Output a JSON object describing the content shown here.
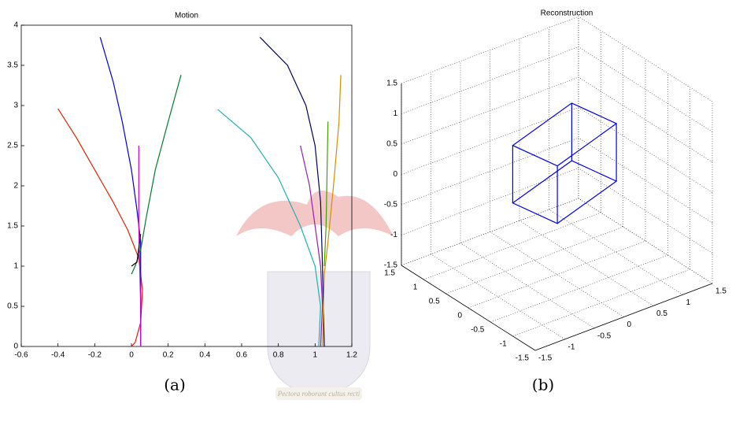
{
  "chart_data": [
    {
      "type": "line",
      "title": "Motion",
      "caption": "(a)",
      "xlim": [
        -0.6,
        1.2
      ],
      "xticks": [
        -0.6,
        -0.4,
        -0.2,
        0,
        0.2,
        0.4,
        0.6,
        0.8,
        1,
        1.2
      ],
      "ylim": [
        0,
        4
      ],
      "yticks": [
        0,
        0.5,
        1,
        1.5,
        2,
        2.5,
        3,
        3.5,
        4
      ],
      "series": [
        {
          "color": "#e02000",
          "x": [
            -0.4,
            -0.3,
            -0.2,
            -0.1,
            -0.02,
            0.04,
            0.06,
            0.05,
            0.02,
            0
          ],
          "values": [
            2.96,
            2.6,
            2.2,
            1.8,
            1.45,
            1.1,
            0.7,
            0.3,
            0.05,
            0
          ]
        },
        {
          "color": "#0000cc",
          "x": [
            -0.17,
            -0.1,
            -0.05,
            0,
            0.03,
            0.05,
            0.05,
            0.05
          ],
          "values": [
            3.85,
            3.3,
            2.8,
            2.2,
            1.7,
            1.3,
            1.0,
            0
          ]
        },
        {
          "color": "#007a30",
          "x": [
            0.27,
            0.2,
            0.13,
            0.08,
            0.05,
            0.02,
            0.0
          ],
          "values": [
            3.38,
            2.8,
            2.2,
            1.6,
            1.2,
            1.0,
            0.9
          ]
        },
        {
          "color": "#cc00cc",
          "x": [
            0.04,
            0.04,
            0.05,
            0.05
          ],
          "values": [
            2.5,
            1.5,
            0.5,
            0
          ]
        },
        {
          "color": "#000000",
          "x": [
            0.0,
            0.03,
            0.05
          ],
          "values": [
            1.0,
            1.05,
            1.4
          ]
        },
        {
          "color": "#000060",
          "x": [
            0.7,
            0.85,
            0.95,
            1.0,
            1.03,
            1.04,
            1.05
          ],
          "values": [
            3.85,
            3.5,
            3.0,
            2.5,
            1.8,
            1.0,
            0
          ]
        },
        {
          "color": "#20b0b0",
          "x": [
            0.47,
            0.65,
            0.8,
            0.92,
            1.0,
            1.03,
            1.02
          ],
          "values": [
            2.95,
            2.6,
            2.1,
            1.5,
            1.0,
            0.5,
            0
          ]
        },
        {
          "color": "#9020b0",
          "x": [
            0.92,
            0.97,
            1.0,
            1.03,
            1.04,
            1.03
          ],
          "values": [
            2.5,
            2.0,
            1.5,
            1.0,
            0.5,
            0
          ]
        },
        {
          "color": "#d09000",
          "x": [
            1.14,
            1.13,
            1.1,
            1.07,
            1.05,
            1.04
          ],
          "values": [
            3.38,
            2.8,
            2.0,
            1.3,
            0.9,
            0
          ]
        },
        {
          "color": "#40a000",
          "x": [
            1.07,
            1.06,
            1.05
          ],
          "values": [
            2.8,
            1.5,
            1.0
          ]
        }
      ]
    },
    {
      "type": "line3d",
      "title": "Reconstruction",
      "caption": "(b)",
      "grid": true,
      "xlim": [
        -1.5,
        1.5
      ],
      "xticks": [
        -1.5,
        -1,
        -0.5,
        0,
        0.5,
        1,
        1.5
      ],
      "ylim": [
        -1.5,
        1.5
      ],
      "yticks": [
        -1.5,
        -1,
        -0.5,
        0,
        0.5,
        1,
        1.5
      ],
      "zlim": [
        -1.5,
        1.5
      ],
      "zticks": [
        -1.5,
        -1,
        -0.5,
        0,
        0.5,
        1,
        1.5
      ],
      "series": [
        {
          "color": "#0000ee",
          "x": [
            -0.37,
            0.63,
            0.63,
            -0.37,
            -0.37,
            -0.37,
            0.63,
            0.63,
            -0.37,
            -0.37,
            null,
            0.63,
            0.63,
            null,
            0.63,
            0.63,
            null,
            -0.37,
            -0.37
          ],
          "y": [
            -0.5,
            -0.5,
            0.5,
            0.5,
            -0.5,
            -0.5,
            -0.5,
            0.5,
            0.5,
            -0.5,
            null,
            -0.5,
            -0.5,
            null,
            0.5,
            0.5,
            null,
            0.5,
            0.5
          ],
          "z": [
            -0.29,
            0.04,
            -0.09,
            -0.42,
            -0.29,
            0.66,
            0.99,
            0.86,
            0.53,
            0.66,
            null,
            0.04,
            0.99,
            null,
            -0.09,
            0.86,
            null,
            -0.42,
            0.53
          ]
        }
      ]
    }
  ],
  "watermark": "Pectora roborant cultus recti"
}
